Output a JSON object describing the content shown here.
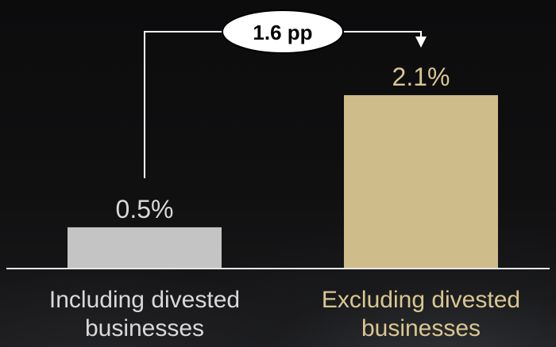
{
  "chart_data": {
    "type": "bar",
    "categories": [
      "Including divested businesses",
      "Excluding divested businesses"
    ],
    "category_lines": [
      [
        "Including divested",
        "businesses"
      ],
      [
        "Excluding divested",
        "businesses"
      ]
    ],
    "values": [
      0.5,
      2.1
    ],
    "value_labels": [
      "0.5%",
      "2.1%"
    ],
    "bar_colors": [
      "#c4c4c4",
      "#cebd8a"
    ],
    "label_colors": [
      "#d9d9d9",
      "#d9c791"
    ],
    "ylim": [
      0,
      2.6
    ],
    "grid": false,
    "legend": "none",
    "annotation": {
      "text": "1.6 pp",
      "from_category": 0,
      "to_category": 1,
      "style": "elbow-arrow"
    },
    "title": "",
    "xlabel": "",
    "ylabel": ""
  },
  "colors": {
    "background": "#0d0d0e",
    "axis_line": "#e6e6e6",
    "connector": "#ffffff",
    "callout_fill": "#ffffff",
    "callout_text": "#000000"
  }
}
